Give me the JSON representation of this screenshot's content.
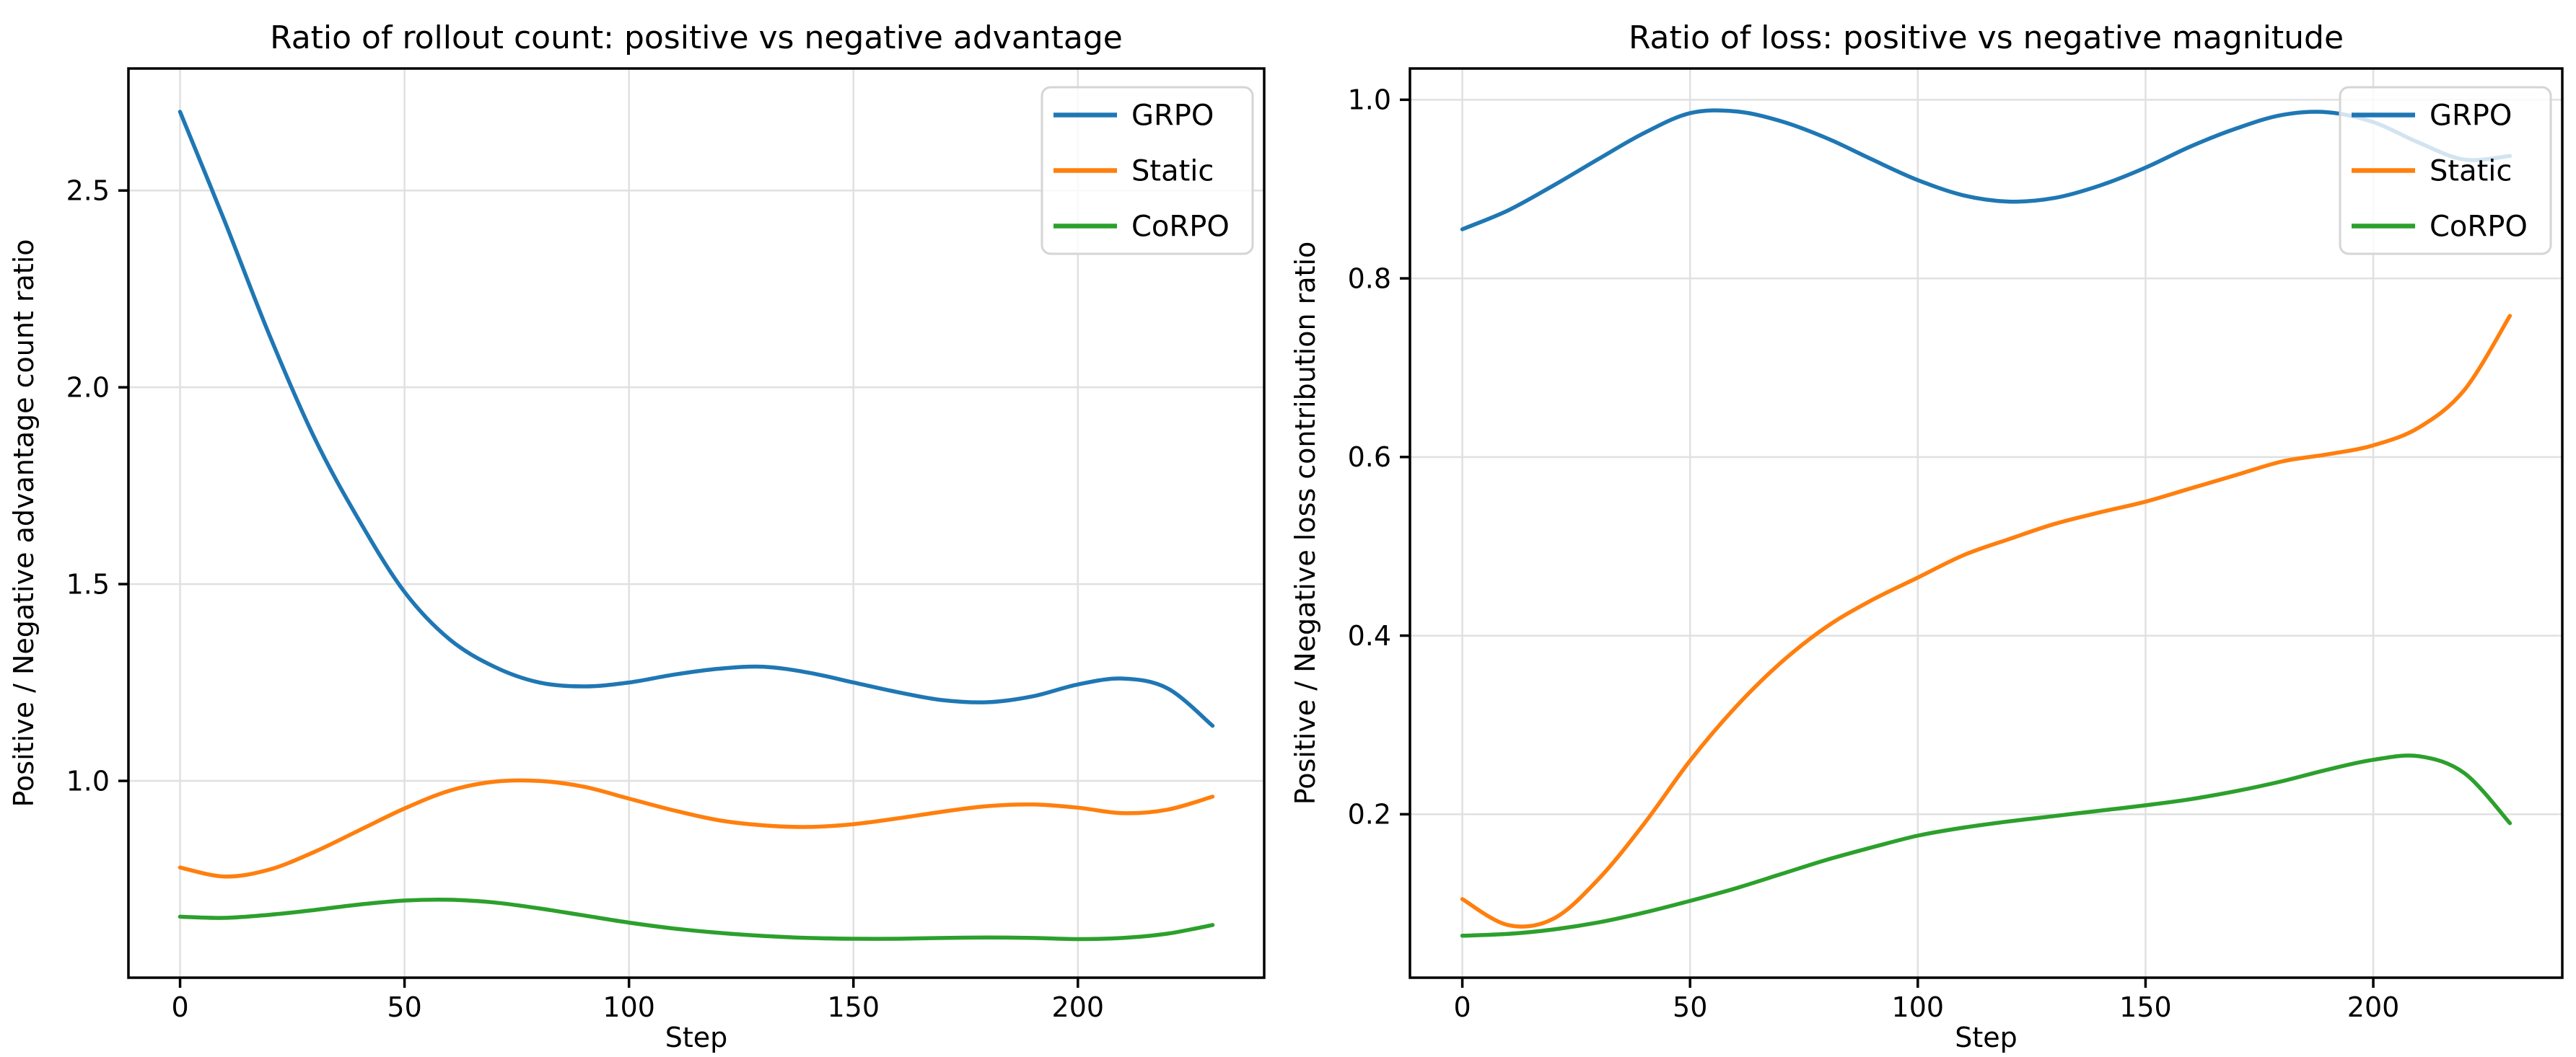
{
  "figure": {
    "background": "#ffffff",
    "text_color": "#000000",
    "grid_color": "#e0e0e0",
    "spine_color": "#000000",
    "legend": {
      "labels": [
        "GRPO",
        "Static",
        "CoRPO"
      ],
      "border_color": "#d5d5d5",
      "background_alpha": 0.8,
      "position": "upper right"
    },
    "series_colors": {
      "GRPO": "#1f77b4",
      "Static": "#ff7f0e",
      "CoRPO": "#2ca02c"
    }
  },
  "chart_data": [
    {
      "type": "line",
      "title": "Ratio of rollout count: positive vs negative advantage",
      "xlabel": "Step",
      "ylabel": "Positive / Negative advantage count ratio",
      "xlim": [
        -11.5,
        241.5
      ],
      "ylim": [
        0.5,
        2.81
      ],
      "xticks": [
        0,
        50,
        100,
        150,
        200
      ],
      "xtick_labels": [
        "0",
        "50",
        "100",
        "150",
        "200"
      ],
      "yticks": [
        1.0,
        1.5,
        2.0,
        2.5
      ],
      "ytick_labels": [
        "1.0",
        "1.5",
        "2.0",
        "2.5"
      ],
      "grid": true,
      "legend_position": "upper right",
      "x": [
        0,
        10,
        20,
        30,
        40,
        50,
        60,
        70,
        80,
        90,
        100,
        110,
        120,
        130,
        140,
        150,
        160,
        170,
        180,
        190,
        200,
        210,
        220,
        230
      ],
      "series": [
        {
          "name": "GRPO",
          "color": "#1f77b4",
          "values": [
            2.7,
            2.42,
            2.13,
            1.87,
            1.66,
            1.48,
            1.36,
            1.29,
            1.25,
            1.24,
            1.25,
            1.27,
            1.285,
            1.29,
            1.275,
            1.25,
            1.225,
            1.205,
            1.2,
            1.215,
            1.245,
            1.26,
            1.235,
            1.14
          ]
        },
        {
          "name": "Static",
          "color": "#ff7f0e",
          "values": [
            0.78,
            0.757,
            0.775,
            0.82,
            0.875,
            0.93,
            0.975,
            0.998,
            1.0,
            0.985,
            0.955,
            0.925,
            0.9,
            0.887,
            0.883,
            0.89,
            0.905,
            0.922,
            0.936,
            0.94,
            0.932,
            0.918,
            0.927,
            0.96
          ]
        },
        {
          "name": "CoRPO",
          "color": "#2ca02c",
          "values": [
            0.655,
            0.652,
            0.66,
            0.672,
            0.686,
            0.696,
            0.698,
            0.691,
            0.676,
            0.658,
            0.64,
            0.625,
            0.614,
            0.606,
            0.601,
            0.599,
            0.599,
            0.601,
            0.602,
            0.601,
            0.598,
            0.601,
            0.612,
            0.634
          ]
        }
      ]
    },
    {
      "type": "line",
      "title": "Ratio of loss: positive vs negative magnitude",
      "xlabel": "Step",
      "ylabel": "Positive / Negative loss contribution ratio",
      "xlim": [
        -11.5,
        241.5
      ],
      "ylim": [
        0.017,
        1.035
      ],
      "xticks": [
        0,
        50,
        100,
        150,
        200
      ],
      "xtick_labels": [
        "0",
        "50",
        "100",
        "150",
        "200"
      ],
      "yticks": [
        0.2,
        0.4,
        0.6,
        0.8,
        1.0
      ],
      "ytick_labels": [
        "0.2",
        "0.4",
        "0.6",
        "0.8",
        "1.0"
      ],
      "grid": true,
      "legend_position": "upper right",
      "x": [
        0,
        10,
        20,
        30,
        40,
        50,
        60,
        70,
        80,
        90,
        100,
        110,
        120,
        130,
        140,
        150,
        160,
        170,
        180,
        190,
        200,
        210,
        220,
        230
      ],
      "series": [
        {
          "name": "GRPO",
          "color": "#1f77b4",
          "values": [
            0.855,
            0.876,
            0.904,
            0.934,
            0.963,
            0.985,
            0.987,
            0.976,
            0.957,
            0.933,
            0.91,
            0.893,
            0.886,
            0.89,
            0.904,
            0.924,
            0.948,
            0.968,
            0.983,
            0.986,
            0.975,
            0.952,
            0.933,
            0.937
          ]
        },
        {
          "name": "Static",
          "color": "#ff7f0e",
          "values": [
            0.105,
            0.076,
            0.083,
            0.128,
            0.19,
            0.26,
            0.32,
            0.37,
            0.41,
            0.44,
            0.465,
            0.49,
            0.508,
            0.525,
            0.538,
            0.55,
            0.565,
            0.58,
            0.595,
            0.603,
            0.613,
            0.633,
            0.675,
            0.758
          ]
        },
        {
          "name": "CoRPO",
          "color": "#2ca02c",
          "values": [
            0.064,
            0.066,
            0.071,
            0.079,
            0.09,
            0.103,
            0.117,
            0.133,
            0.149,
            0.163,
            0.176,
            0.185,
            0.192,
            0.198,
            0.204,
            0.21,
            0.217,
            0.226,
            0.237,
            0.25,
            0.261,
            0.265,
            0.246,
            0.19
          ]
        }
      ]
    }
  ]
}
